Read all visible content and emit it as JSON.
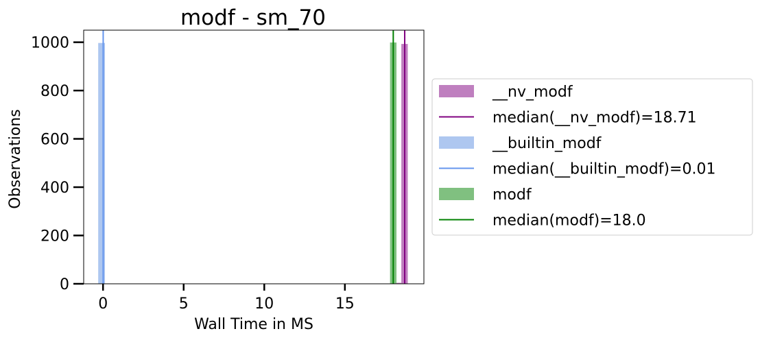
{
  "chart_data": {
    "type": "histogram",
    "title": "modf - sm_70",
    "xlabel": "Wall Time in MS",
    "ylabel": "Observations",
    "xlim": [
      -1.2,
      19.9
    ],
    "ylim": [
      0,
      1050
    ],
    "xticks": [
      0,
      5,
      10,
      15
    ],
    "yticks": [
      0,
      200,
      400,
      600,
      800,
      1000
    ],
    "grid": false,
    "legend_position": "outside-right",
    "series": [
      {
        "name": "__nv_modf",
        "color": "#bf7fbf",
        "bars": [
          {
            "x0": 18.5,
            "x1": 18.9,
            "count": 993
          },
          {
            "x0": 18.1,
            "x1": 18.5,
            "count": 4
          }
        ],
        "median": 18.71,
        "median_color": "#800080",
        "median_label": "median(__nv_modf)=18.71"
      },
      {
        "name": "__builtin_modf",
        "color": "#aec7f0",
        "bars": [
          {
            "x0": -0.3,
            "x1": 0.12,
            "count": 997
          },
          {
            "x0": 4.6,
            "x1": 5.0,
            "count": 1
          }
        ],
        "median": 0.01,
        "median_color": "#6495ed",
        "median_label": "median(__builtin_modf)=0.01"
      },
      {
        "name": "modf",
        "color": "#80c080",
        "bars": [
          {
            "x0": 17.8,
            "x1": 18.2,
            "count": 999
          }
        ],
        "median": 18.0,
        "median_color": "#008000",
        "median_label": "median(modf)=18.0"
      }
    ]
  }
}
